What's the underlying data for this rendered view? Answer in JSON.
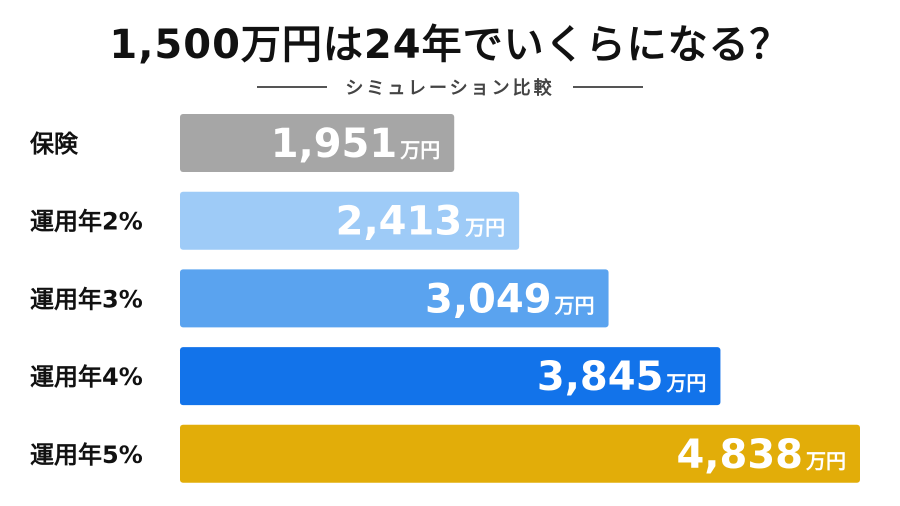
{
  "title": "1,500万円は24年でいくらになる？",
  "subtitle": "シミュレーション比較",
  "chart_data": {
    "type": "bar",
    "orientation": "horizontal",
    "title": "1,500万円は24年でいくらになる？",
    "subtitle": "シミュレーション比較",
    "categories": [
      "保険",
      "運用年2%",
      "運用年3%",
      "運用年4%",
      "運用年5%"
    ],
    "values": [
      1951,
      2413,
      3049,
      3845,
      4838
    ],
    "value_labels": [
      "1,951",
      "2,413",
      "3,049",
      "3,845",
      "4,838"
    ],
    "unit": "万円",
    "colors": [
      "#a6a6a6",
      "#9ecbf7",
      "#5aa3ef",
      "#1273ea",
      "#e2ad09"
    ],
    "grid": false,
    "legend": "none"
  }
}
